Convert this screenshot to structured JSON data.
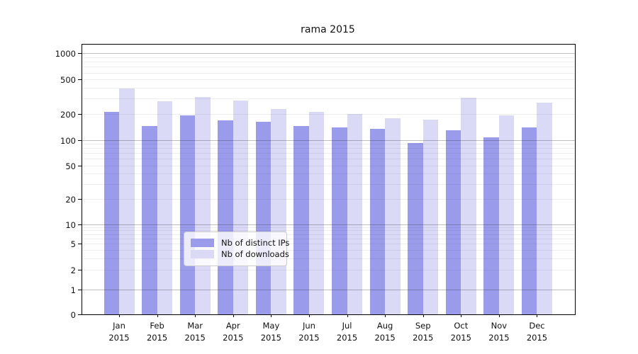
{
  "title": "rama 2015",
  "legend": {
    "items": [
      {
        "label": "Nb of distinct IPs",
        "color": "#9b9bec"
      },
      {
        "label": "Nb of downloads",
        "color": "#dadaf7"
      }
    ]
  },
  "chart_data": {
    "type": "bar",
    "title": "rama 2015",
    "categories": [
      "Jan 2015",
      "Feb 2015",
      "Mar 2015",
      "Apr 2015",
      "May 2015",
      "Jun 2015",
      "Jul 2015",
      "Aug 2015",
      "Sep 2015",
      "Oct 2015",
      "Nov 2015",
      "Dec 2015"
    ],
    "series": [
      {
        "name": "Nb of distinct IPs",
        "color": "#9b9bec",
        "values": [
          210,
          145,
          192,
          170,
          162,
          145,
          140,
          136,
          93,
          131,
          108,
          141
        ]
      },
      {
        "name": "Nb of downloads",
        "color": "#dadaf7",
        "values": [
          395,
          279,
          316,
          284,
          228,
          212,
          202,
          180,
          173,
          308,
          194,
          272
        ]
      }
    ],
    "xlabel": "",
    "ylabel": "",
    "yscale": "log",
    "yticks": [
      0,
      1,
      2,
      5,
      10,
      20,
      50,
      100,
      200,
      500,
      1000
    ],
    "ylim": [
      0,
      1259
    ],
    "grid": "horizontal",
    "legend_position": "lower-center-inside"
  }
}
